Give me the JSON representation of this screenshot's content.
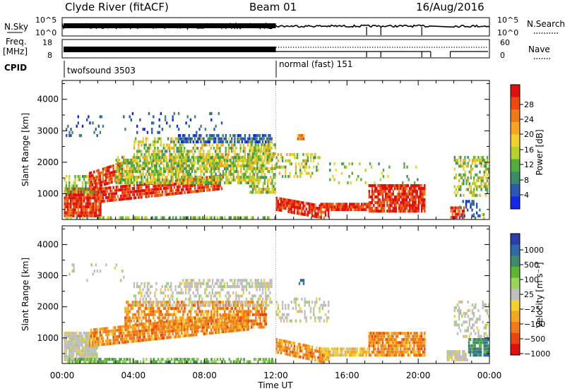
{
  "header": {
    "station": "Clyde River (fitACF)",
    "beam": "Beam 01",
    "date": "16/Aug/2016"
  },
  "strip_nsky": {
    "left_label": "N.Sky",
    "right_label": "N.Search",
    "left_ticks": [
      "10^5",
      "10^0"
    ],
    "right_ticks": [
      "10^5",
      "10^0"
    ]
  },
  "strip_freq": {
    "left_label_1": "Freq.",
    "left_label_2": "[MHz]",
    "right_label": "Nave",
    "left_ticks": [
      "18",
      "8"
    ],
    "right_ticks": [
      "60",
      "0"
    ]
  },
  "cpid": {
    "label": "CPID",
    "segments": [
      {
        "name": "twofsound 3503",
        "start_hour": 0
      },
      {
        "name": "normal (fast) 151",
        "start_hour": 12
      }
    ]
  },
  "time_axis": {
    "title": "Time UT",
    "ticks": [
      "00:00",
      "04:00",
      "08:00",
      "12:00",
      "16:00",
      "20:00",
      "00:00"
    ]
  },
  "chart_data": [
    {
      "type": "heatmap",
      "name": "power-panel",
      "ylabel": "Slant Range [km]",
      "y_ticks": [
        1000,
        2000,
        3000,
        4000
      ],
      "ylim": [
        180,
        4600
      ],
      "xlim_hours": [
        0,
        24
      ],
      "colorbar": {
        "label": "Power [dB]",
        "ticks": [
          "4",
          "8",
          "12",
          "16",
          "20",
          "24",
          "28"
        ],
        "colors": [
          "#1428e6",
          "#2b58b3",
          "#3a8a6c",
          "#53ad3a",
          "#b7d02a",
          "#f2d12e",
          "#f6a623",
          "#f07a1a",
          "#ea4a12",
          "#e01010"
        ]
      }
    },
    {
      "type": "heatmap",
      "name": "velocity-panel",
      "ylabel": "Slant Range [km]",
      "y_ticks": [
        1000,
        2000,
        3000,
        4000
      ],
      "ylim": [
        180,
        4600
      ],
      "xlim_hours": [
        0,
        24
      ],
      "colorbar": {
        "label": "Velocity [m s⁻¹]",
        "ticks": [
          "1000",
          "500",
          "100",
          "25",
          "−25",
          "−100",
          "−500",
          "−1000"
        ],
        "colors": [
          "#2a3fa8",
          "#2f6aa8",
          "#3f8a6a",
          "#5cb833",
          "#9bd45a",
          "#bfbfbf",
          "#f2d12e",
          "#f5a623",
          "#f07a1a",
          "#e84510",
          "#e01010"
        ]
      }
    }
  ]
}
